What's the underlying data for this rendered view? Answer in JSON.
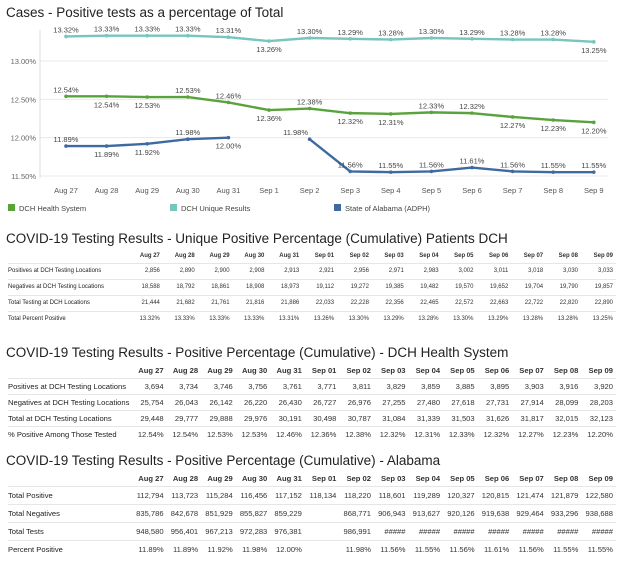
{
  "chart_data": {
    "type": "line",
    "title": "Cases - Positive tests as a percentage of Total",
    "categories": [
      "Aug 27",
      "Aug 28",
      "Aug 29",
      "Aug 30",
      "Aug 31",
      "Sep 1",
      "Sep 2",
      "Sep 3",
      "Sep 4",
      "Sep 5",
      "Sep 6",
      "Sep 7",
      "Sep 8",
      "Sep 9"
    ],
    "y_ticks": [
      "13.00%",
      "12.50%",
      "12.00%",
      "11.50%"
    ],
    "ylim": [
      11.45,
      13.38
    ],
    "grid": true,
    "legend_position": "bottom",
    "series": [
      {
        "name": "DCH Unique Results",
        "color": "#76c5bf",
        "values": [
          13.32,
          13.33,
          13.33,
          13.33,
          13.31,
          13.26,
          13.3,
          13.29,
          13.28,
          13.3,
          13.29,
          13.28,
          13.28,
          13.25
        ],
        "labels": [
          "13.32%",
          "13.33%",
          "13.33%",
          "13.33%",
          "13.31%",
          "13.26%",
          "13.30%",
          "13.29%",
          "13.28%",
          "13.30%",
          "13.29%",
          "13.28%",
          "13.28%",
          "13.25%"
        ]
      },
      {
        "name": "DCH Health System",
        "color": "#5aa33c",
        "values": [
          12.54,
          12.54,
          12.53,
          12.53,
          12.46,
          12.36,
          12.38,
          12.32,
          12.31,
          12.33,
          12.32,
          12.27,
          12.23,
          12.2
        ],
        "labels": [
          "12.54%",
          "12.54%",
          "12.53%",
          "12.53%",
          "12.46%",
          "12.36%",
          "12.38%",
          "12.32%",
          "12.31%",
          "12.33%",
          "12.32%",
          "12.27%",
          "12.23%",
          "12.20%"
        ]
      },
      {
        "name": "State of Alabama (ADPH)",
        "color": "#3f6aa0",
        "values": [
          11.89,
          11.89,
          11.92,
          11.98,
          12.0,
          null,
          11.98,
          11.56,
          11.55,
          11.56,
          11.61,
          11.56,
          11.55,
          11.55
        ],
        "labels": [
          "11.89%",
          "11.89%",
          "11.92%",
          "11.98%",
          "12.00%",
          null,
          "11.98%",
          "11.56%",
          "11.55%",
          "11.56%",
          "11.61%",
          "11.56%",
          "11.55%",
          "11.55%"
        ]
      }
    ],
    "legend": [
      "DCH Health System",
      "DCH Unique Results",
      "State of Alabama (ADPH)"
    ]
  },
  "tables": {
    "t1": {
      "title": "COVID-19 Testing Results - Unique Positive Percentage (Cumulative) Patients DCH",
      "columns": [
        "Aug 27",
        "Aug 28",
        "Aug 29",
        "Aug 30",
        "Aug 31",
        "Sep 01",
        "Sep 02",
        "Sep 03",
        "Sep 04",
        "Sep 05",
        "Sep 06",
        "Sep 07",
        "Sep 08",
        "Sep 09"
      ],
      "rows": [
        {
          "label": "Positives at DCH Testing Locations",
          "values": [
            "2,856",
            "2,890",
            "2,900",
            "2,908",
            "2,913",
            "2,921",
            "2,956",
            "2,971",
            "2,983",
            "3,002",
            "3,011",
            "3,018",
            "3,030",
            "3,033"
          ]
        },
        {
          "label": "Negatives at DCH Testing Locations",
          "values": [
            "18,588",
            "18,792",
            "18,861",
            "18,908",
            "18,973",
            "19,112",
            "19,272",
            "19,385",
            "19,482",
            "19,570",
            "19,652",
            "19,704",
            "19,790",
            "19,857"
          ]
        },
        {
          "label": "Total Testing at DCH Locations",
          "values": [
            "21,444",
            "21,682",
            "21,761",
            "21,816",
            "21,886",
            "22,033",
            "22,228",
            "22,356",
            "22,465",
            "22,572",
            "22,663",
            "22,722",
            "22,820",
            "22,890"
          ]
        },
        {
          "label": "Total Percent Positive",
          "values": [
            "13.32%",
            "13.33%",
            "13.33%",
            "13.33%",
            "13.31%",
            "13.26%",
            "13.30%",
            "13.29%",
            "13.28%",
            "13.30%",
            "13.29%",
            "13.28%",
            "13.28%",
            "13.25%"
          ]
        }
      ]
    },
    "t2": {
      "title": "COVID-19 Testing Results - Positive Percentage (Cumulative) - DCH Health System",
      "columns": [
        "Aug 27",
        "Aug 28",
        "Aug 29",
        "Aug 30",
        "Aug 31",
        "Sep 01",
        "Sep 02",
        "Sep 03",
        "Sep 04",
        "Sep 05",
        "Sep 06",
        "Sep 07",
        "Sep 08",
        "Sep 09"
      ],
      "rows": [
        {
          "label": "Positives at DCH Testing Locations",
          "values": [
            "3,694",
            "3,734",
            "3,746",
            "3,756",
            "3,761",
            "3,771",
            "3,811",
            "3,829",
            "3,859",
            "3,885",
            "3,895",
            "3,903",
            "3,916",
            "3,920"
          ]
        },
        {
          "label": "Negatives at DCH Testing Locations",
          "values": [
            "25,754",
            "26,043",
            "26,142",
            "26,220",
            "26,430",
            "26,727",
            "26,976",
            "27,255",
            "27,480",
            "27,618",
            "27,731",
            "27,914",
            "28,099",
            "28,203"
          ]
        },
        {
          "label": "Total at DCH Testing Locations",
          "values": [
            "29,448",
            "29,777",
            "29,888",
            "29,976",
            "30,191",
            "30,498",
            "30,787",
            "31,084",
            "31,339",
            "31,503",
            "31,626",
            "31,817",
            "32,015",
            "32,123"
          ]
        },
        {
          "label": "% Positive Among Those Tested",
          "values": [
            "12.54%",
            "12.54%",
            "12.53%",
            "12.53%",
            "12.46%",
            "12.36%",
            "12.38%",
            "12.32%",
            "12.31%",
            "12.33%",
            "12.32%",
            "12.27%",
            "12.23%",
            "12.20%"
          ]
        }
      ]
    },
    "t3": {
      "title": "COVID-19 Testing Results - Positive Percentage (Cumulative) - Alabama",
      "columns": [
        "Aug 27",
        "Aug 28",
        "Aug 29",
        "Aug 30",
        "Aug 31",
        "Sep 01",
        "Sep 02",
        "Sep 03",
        "Sep 04",
        "Sep 05",
        "Sep 06",
        "Sep 07",
        "Sep 08",
        "Sep 09"
      ],
      "rows": [
        {
          "label": "Total Positive",
          "values": [
            "112,794",
            "113,723",
            "115,284",
            "116,456",
            "117,152",
            "118,134",
            "118,220",
            "118,601",
            "119,289",
            "120,327",
            "120,815",
            "121,474",
            "121,879",
            "122,580"
          ]
        },
        {
          "label": "Total Negatives",
          "values": [
            "835,786",
            "842,678",
            "851,929",
            "855,827",
            "859,229",
            "",
            "868,771",
            "906,943",
            "913,627",
            "920,126",
            "919,638",
            "929,464",
            "933,296",
            "938,688"
          ]
        },
        {
          "label": "Total Tests",
          "values": [
            "948,580",
            "956,401",
            "967,213",
            "972,283",
            "976,381",
            "",
            "986,991",
            "#####",
            "#####",
            "#####",
            "#####",
            "#####",
            "#####",
            "#####"
          ]
        },
        {
          "label": "Percent Positive",
          "values": [
            "11.89%",
            "11.89%",
            "11.92%",
            "11.98%",
            "12.00%",
            "",
            "11.98%",
            "11.56%",
            "11.55%",
            "11.56%",
            "11.61%",
            "11.56%",
            "11.55%",
            "11.55%"
          ]
        }
      ]
    }
  }
}
